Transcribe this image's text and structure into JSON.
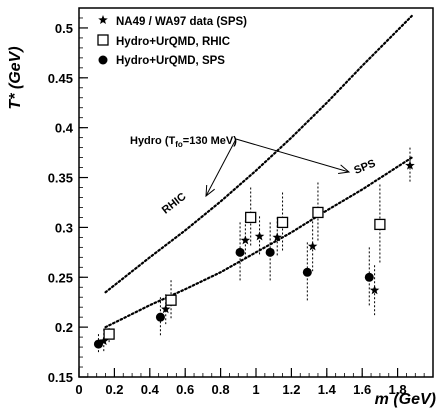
{
  "chart_data": {
    "type": "scatter",
    "xlabel": "m (GeV)",
    "ylabel": "T* (GeV)",
    "xlim": [
      0,
      2.0
    ],
    "ylim": [
      0.15,
      0.52
    ],
    "x_ticks": [
      0,
      0.2,
      0.4,
      0.6,
      0.8,
      1,
      1.2,
      1.4,
      1.6,
      1.8
    ],
    "x_tick_labels": [
      "0",
      "0.2",
      "0.4",
      "0.6",
      "0.8",
      "1",
      "1.2",
      "1.4",
      "1.6",
      "1.8"
    ],
    "y_ticks": [
      0.15,
      0.2,
      0.25,
      0.3,
      0.35,
      0.4,
      0.45,
      0.5
    ],
    "y_tick_labels": [
      "0.15",
      "0.2",
      "0.25",
      "0.3",
      "0.35",
      "0.4",
      "0.45",
      "0.5"
    ],
    "legend_position": "top-left",
    "series": [
      {
        "name": "NA49 / WA97 data (SPS)",
        "marker": "star",
        "points": [
          {
            "x": 0.14,
            "y": 0.186,
            "err": 0.012
          },
          {
            "x": 0.49,
            "y": 0.218,
            "err": 0.015
          },
          {
            "x": 0.94,
            "y": 0.287,
            "err": 0.02
          },
          {
            "x": 1.02,
            "y": 0.291,
            "err": 0.02
          },
          {
            "x": 1.12,
            "y": 0.29,
            "err": 0.02
          },
          {
            "x": 1.32,
            "y": 0.281,
            "err": 0.025
          },
          {
            "x": 1.67,
            "y": 0.237,
            "err": 0.025
          },
          {
            "x": 1.87,
            "y": 0.362,
            "err": 0.018
          }
        ]
      },
      {
        "name": "Hydro+UrQMD, RHIC",
        "marker": "open-square",
        "points": [
          {
            "x": 0.17,
            "y": 0.193,
            "err": 0.01
          },
          {
            "x": 0.52,
            "y": 0.227,
            "err": 0.02
          },
          {
            "x": 0.97,
            "y": 0.31,
            "err": 0.03
          },
          {
            "x": 1.15,
            "y": 0.305,
            "err": 0.03
          },
          {
            "x": 1.35,
            "y": 0.315,
            "err": 0.03
          },
          {
            "x": 1.7,
            "y": 0.303,
            "err": 0.04
          }
        ]
      },
      {
        "name": "Hydro+UrQMD, SPS",
        "marker": "filled-circle",
        "points": [
          {
            "x": 0.11,
            "y": 0.183,
            "err": 0.01
          },
          {
            "x": 0.46,
            "y": 0.21,
            "err": 0.02
          },
          {
            "x": 0.91,
            "y": 0.275,
            "err": 0.03
          },
          {
            "x": 1.08,
            "y": 0.275,
            "err": 0.03
          },
          {
            "x": 1.29,
            "y": 0.255,
            "err": 0.03
          },
          {
            "x": 1.64,
            "y": 0.25,
            "err": 0.03
          }
        ]
      }
    ],
    "curves": [
      {
        "name": "RHIC",
        "style": "dotted",
        "x": [
          0.15,
          0.4,
          0.6,
          0.8,
          1.0,
          1.2,
          1.4,
          1.6,
          1.88
        ],
        "y": [
          0.235,
          0.27,
          0.297,
          0.326,
          0.357,
          0.39,
          0.425,
          0.462,
          0.512
        ]
      },
      {
        "name": "SPS",
        "style": "dotted",
        "x": [
          0.15,
          0.4,
          0.6,
          0.8,
          1.0,
          1.2,
          1.4,
          1.6,
          1.88
        ],
        "y": [
          0.2,
          0.222,
          0.238,
          0.255,
          0.275,
          0.295,
          0.317,
          0.338,
          0.37
        ]
      }
    ],
    "annotations": {
      "hydro_label": "Hydro (T",
      "hydro_subscript": "fo",
      "hydro_label_end": "=130 MeV)",
      "curve_label_rhic": "RHIC",
      "curve_label_sps": "SPS"
    }
  }
}
